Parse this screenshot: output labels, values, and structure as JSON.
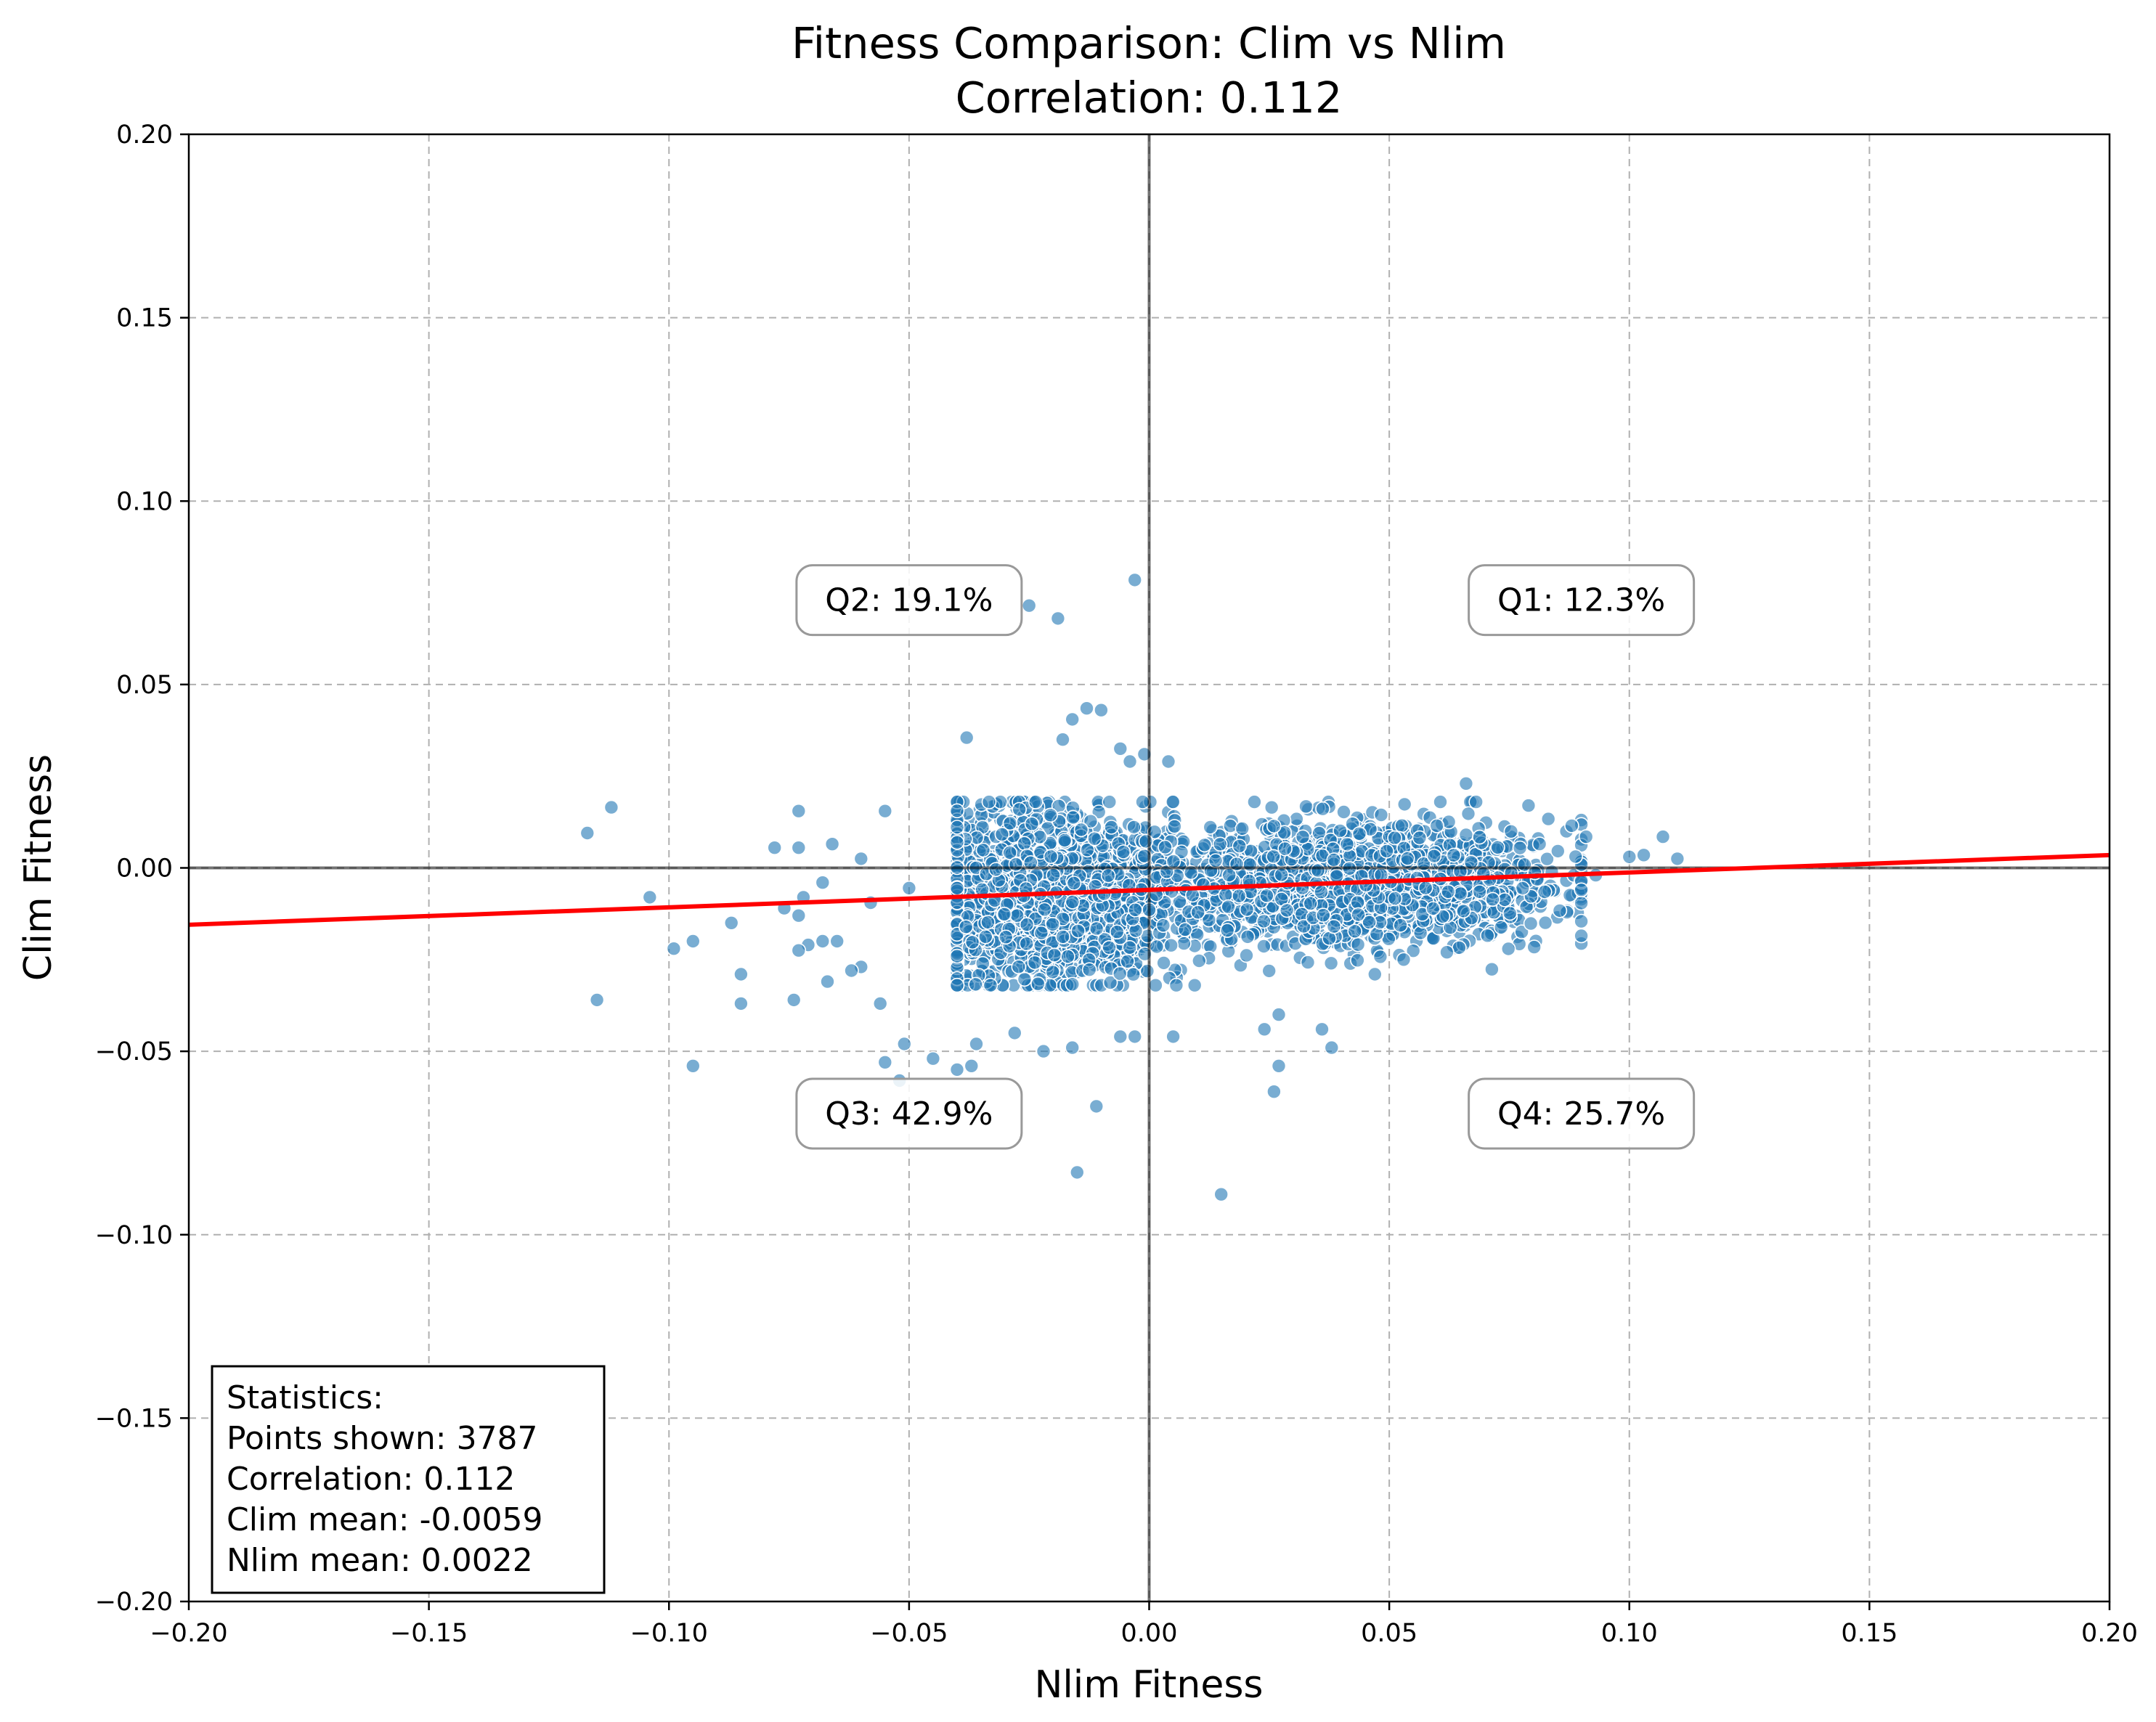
{
  "chart_data": {
    "type": "scatter",
    "title": "Fitness Comparison: Clim vs Nlim",
    "subtitle": "Correlation: 0.112",
    "xlabel": "Nlim Fitness",
    "ylabel": "Clim Fitness",
    "xlim": [
      -0.2,
      0.2
    ],
    "ylim": [
      -0.2,
      0.2
    ],
    "xticks": [
      -0.2,
      -0.15,
      -0.1,
      -0.05,
      0.0,
      0.05,
      0.1,
      0.15,
      0.2
    ],
    "yticks": [
      -0.2,
      -0.15,
      -0.1,
      -0.05,
      0.0,
      0.05,
      0.1,
      0.15,
      0.2
    ],
    "xtick_labels": [
      "−0.20",
      "−0.15",
      "−0.10",
      "−0.05",
      "0.00",
      "0.05",
      "0.10",
      "0.15",
      "0.20"
    ],
    "ytick_labels": [
      "−0.20",
      "−0.15",
      "−0.10",
      "−0.05",
      "0.00",
      "0.05",
      "0.10",
      "0.15",
      "0.20"
    ],
    "grid": true,
    "point_color": "#1f77b4",
    "fit_line_color": "#ff0000",
    "fit_line": {
      "x": [
        -0.2,
        0.2
      ],
      "y": [
        -0.0155,
        0.0035
      ]
    },
    "reference_lines": {
      "x": 0.0,
      "y": 0.0
    },
    "quadrant_labels": [
      {
        "text": "Q1: 12.3%",
        "x": 0.09,
        "y": 0.073
      },
      {
        "text": "Q2: 19.1%",
        "x": -0.05,
        "y": 0.073
      },
      {
        "text": "Q3: 42.9%",
        "x": -0.05,
        "y": -0.067
      },
      {
        "text": "Q4: 25.7%",
        "x": 0.09,
        "y": -0.067
      }
    ],
    "statistics": {
      "lines": [
        "Statistics:",
        "Points shown: 3787",
        "Correlation: 0.112",
        "Clim mean: -0.0059",
        "Nlim mean: 0.0022"
      ],
      "placement": "bottom-left"
    },
    "points_total": 3787,
    "outlier_points": [
      [
        -0.003,
        0.0785
      ],
      [
        -0.025,
        0.0715
      ],
      [
        -0.019,
        0.068
      ],
      [
        -0.013,
        0.0435
      ],
      [
        -0.01,
        0.043
      ],
      [
        -0.016,
        0.0405
      ],
      [
        -0.038,
        0.0355
      ],
      [
        -0.018,
        0.035
      ],
      [
        -0.006,
        0.0325
      ],
      [
        -0.001,
        0.031
      ],
      [
        -0.004,
        0.029
      ],
      [
        0.004,
        0.029
      ],
      [
        -0.112,
        0.0165
      ],
      [
        -0.117,
        0.0095
      ],
      [
        -0.073,
        0.0155
      ],
      [
        -0.055,
        0.0155
      ],
      [
        -0.078,
        0.0055
      ],
      [
        -0.066,
        0.0065
      ],
      [
        -0.073,
        0.0055
      ],
      [
        -0.104,
        -0.008
      ],
      [
        -0.087,
        -0.015
      ],
      [
        -0.099,
        -0.022
      ],
      [
        -0.095,
        -0.02
      ],
      [
        -0.115,
        -0.036
      ],
      [
        -0.085,
        -0.037
      ],
      [
        -0.085,
        -0.029
      ],
      [
        -0.074,
        -0.036
      ],
      [
        -0.095,
        -0.054
      ],
      [
        -0.076,
        -0.011
      ],
      [
        -0.072,
        -0.008
      ],
      [
        -0.068,
        -0.004
      ],
      [
        -0.073,
        -0.013
      ],
      [
        -0.068,
        -0.02
      ],
      [
        -0.071,
        -0.021
      ],
      [
        -0.073,
        -0.0225
      ],
      [
        -0.065,
        -0.02
      ],
      [
        -0.067,
        -0.031
      ],
      [
        -0.06,
        -0.027
      ],
      [
        -0.062,
        -0.028
      ],
      [
        -0.056,
        -0.037
      ],
      [
        -0.055,
        -0.053
      ],
      [
        -0.052,
        -0.058
      ],
      [
        -0.051,
        -0.048
      ],
      [
        -0.045,
        -0.052
      ],
      [
        -0.04,
        -0.055
      ],
      [
        -0.037,
        -0.054
      ],
      [
        -0.036,
        -0.048
      ],
      [
        -0.028,
        -0.045
      ],
      [
        -0.022,
        -0.05
      ],
      [
        -0.016,
        -0.049
      ],
      [
        -0.015,
        -0.083
      ],
      [
        -0.011,
        -0.065
      ],
      [
        -0.006,
        -0.046
      ],
      [
        -0.003,
        -0.046
      ],
      [
        0.005,
        -0.046
      ],
      [
        0.015,
        -0.089
      ],
      [
        0.026,
        -0.061
      ],
      [
        0.027,
        -0.054
      ],
      [
        0.024,
        -0.044
      ],
      [
        0.027,
        -0.04
      ],
      [
        0.036,
        -0.044
      ],
      [
        0.038,
        -0.049
      ],
      [
        0.047,
        -0.029
      ],
      [
        0.053,
        -0.025
      ],
      [
        0.062,
        -0.023
      ],
      [
        0.066,
        0.023
      ],
      [
        0.079,
        0.017
      ],
      [
        0.088,
        0.0115
      ],
      [
        0.091,
        0.0085
      ],
      [
        0.1,
        0.003
      ],
      [
        0.103,
        0.0035
      ],
      [
        0.107,
        0.0085
      ],
      [
        0.11,
        0.0025
      ],
      [
        0.093,
        -0.002
      ],
      [
        0.09,
        -0.006
      ],
      [
        -0.05,
        -0.0055
      ],
      [
        -0.058,
        -0.0095
      ],
      [
        -0.06,
        0.0025
      ]
    ],
    "cluster_model": {
      "mean_x": 0.0022,
      "mean_y": -0.0059,
      "core_x_range": [
        -0.04,
        0.09
      ],
      "core_y_range": [
        -0.032,
        0.018
      ]
    }
  }
}
